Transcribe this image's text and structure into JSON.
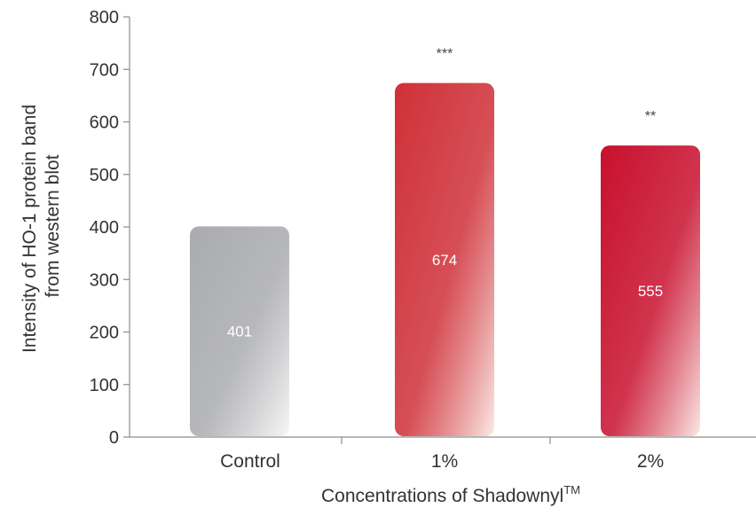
{
  "chart_data": {
    "type": "bar",
    "categories": [
      "Control",
      "1%",
      "2%"
    ],
    "values": [
      401,
      674,
      555
    ],
    "value_labels": [
      "401",
      "674",
      "555"
    ],
    "significance": [
      "",
      "***",
      "**"
    ],
    "title": "",
    "xlabel": "Concentrations of Shadownyl",
    "xlabel_sup": "TM",
    "ylabel_lines": [
      "Intensity of HO-1 protein band",
      "from western blot"
    ],
    "ylim": [
      0,
      800
    ],
    "yticks": [
      0,
      100,
      200,
      300,
      400,
      500,
      600,
      700,
      800
    ],
    "grid": false,
    "legend": "none",
    "colors": {
      "control_top": "#aaabae",
      "control_bottom": "#f7f7f7",
      "treat1_top": "#cf3038",
      "treat1_bottom": "#fbe9e5",
      "treat2_top": "#c8102e",
      "treat2_bottom": "#fbe9e5"
    }
  }
}
